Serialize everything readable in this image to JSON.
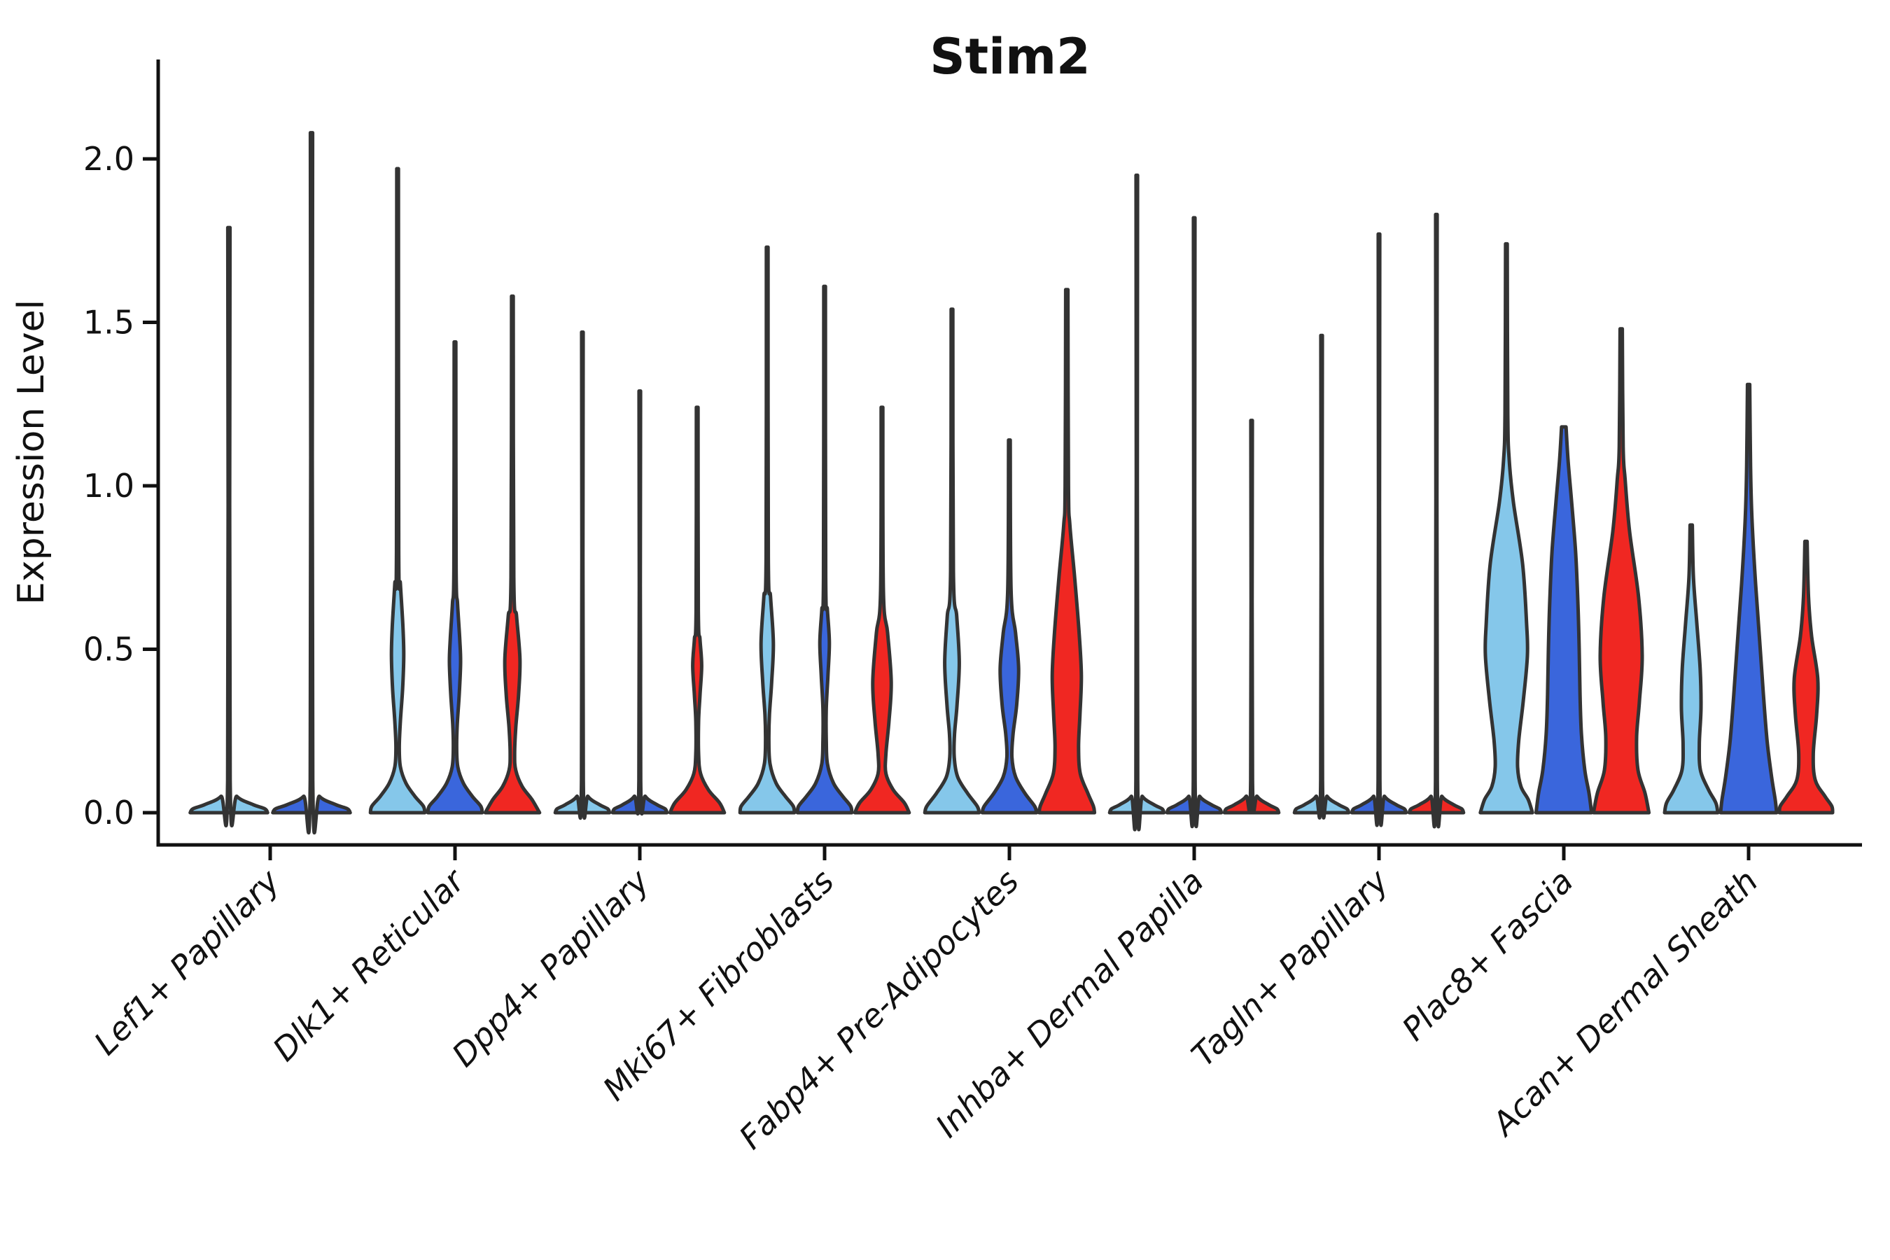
{
  "title": "Stim2",
  "chart_data": {
    "type": "violin",
    "title": "Stim2",
    "xlabel": "",
    "ylabel": "Expression Level",
    "ylim": [
      -0.1,
      2.3
    ],
    "yticks": [
      0.0,
      0.5,
      1.0,
      1.5,
      2.0
    ],
    "ytick_labels": [
      "0.0",
      "0.5",
      "1.0",
      "1.5",
      "2.0"
    ],
    "grid": false,
    "legend": "none",
    "categories": [
      "Lef1+ Papillary",
      "Dlk1+ Reticular",
      "Dpp4+ Papillary",
      "Mki67+ Fibroblasts",
      "Fabp4+ Pre-Adipocytes",
      "Inhba+ Dermal Papilla",
      "Tagln+ Papillary",
      "Plac8+ Fascia",
      "Acan+ Dermal Sheath"
    ],
    "palette": {
      "skyblue": "#85C7EA",
      "blue": "#3A66DC",
      "red": "#F02722",
      "outline": "#333333",
      "axis": "#111111"
    },
    "spike_profile": [
      [
        1,
        0.028
      ],
      [
        0.1,
        0.032
      ],
      [
        0.05,
        0.2
      ],
      [
        0.025,
        0.6
      ],
      [
        0.012,
        0.9
      ],
      [
        0,
        0.97
      ]
    ],
    "violins": [
      {
        "category": 0,
        "color": "skyblue",
        "offset": -59,
        "half_width": 57,
        "max": 1.79,
        "shape": "spike"
      },
      {
        "category": 0,
        "color": "blue",
        "offset": 59,
        "half_width": 57,
        "max": 2.08,
        "shape": "spike"
      },
      {
        "category": 1,
        "color": "skyblue",
        "offset": -82,
        "half_width": 40,
        "max": 1.97,
        "shape": "profile",
        "profile": [
          [
            1.97,
            0.03
          ],
          [
            0.8,
            0.04
          ],
          [
            0.7,
            0.1
          ],
          [
            0.57,
            0.19
          ],
          [
            0.48,
            0.22
          ],
          [
            0.38,
            0.18
          ],
          [
            0.28,
            0.1
          ],
          [
            0.2,
            0.06
          ],
          [
            0.14,
            0.1
          ],
          [
            0.09,
            0.3
          ],
          [
            0.05,
            0.62
          ],
          [
            0.02,
            0.92
          ],
          [
            0,
            0.97
          ]
        ]
      },
      {
        "category": 1,
        "color": "blue",
        "offset": 0,
        "half_width": 40,
        "max": 1.44,
        "shape": "profile",
        "profile": [
          [
            1.44,
            0.03
          ],
          [
            0.75,
            0.04
          ],
          [
            0.64,
            0.09
          ],
          [
            0.53,
            0.17
          ],
          [
            0.46,
            0.2
          ],
          [
            0.36,
            0.15
          ],
          [
            0.27,
            0.08
          ],
          [
            0.2,
            0.06
          ],
          [
            0.14,
            0.1
          ],
          [
            0.09,
            0.3
          ],
          [
            0.05,
            0.62
          ],
          [
            0.02,
            0.92
          ],
          [
            0,
            0.97
          ]
        ]
      },
      {
        "category": 1,
        "color": "red",
        "offset": 82,
        "half_width": 40,
        "max": 1.58,
        "shape": "profile",
        "profile": [
          [
            1.58,
            0.03
          ],
          [
            0.72,
            0.05
          ],
          [
            0.6,
            0.15
          ],
          [
            0.47,
            0.27
          ],
          [
            0.36,
            0.22
          ],
          [
            0.26,
            0.12
          ],
          [
            0.18,
            0.08
          ],
          [
            0.13,
            0.12
          ],
          [
            0.08,
            0.35
          ],
          [
            0.04,
            0.7
          ],
          [
            0,
            0.97
          ]
        ]
      },
      {
        "category": 2,
        "color": "skyblue",
        "offset": -82,
        "half_width": 40,
        "max": 1.47,
        "shape": "spike"
      },
      {
        "category": 2,
        "color": "blue",
        "offset": 0,
        "half_width": 40,
        "max": 1.29,
        "shape": "spike"
      },
      {
        "category": 2,
        "color": "red",
        "offset": 82,
        "half_width": 40,
        "max": 1.24,
        "shape": "profile",
        "profile": [
          [
            1.24,
            0.03
          ],
          [
            0.62,
            0.04
          ],
          [
            0.53,
            0.1
          ],
          [
            0.45,
            0.16
          ],
          [
            0.36,
            0.1
          ],
          [
            0.28,
            0.05
          ],
          [
            0.18,
            0.05
          ],
          [
            0.12,
            0.12
          ],
          [
            0.07,
            0.4
          ],
          [
            0.03,
            0.8
          ],
          [
            0,
            0.97
          ]
        ]
      },
      {
        "category": 3,
        "color": "skyblue",
        "offset": -82,
        "half_width": 40,
        "max": 1.73,
        "shape": "profile",
        "profile": [
          [
            1.73,
            0.03
          ],
          [
            0.78,
            0.04
          ],
          [
            0.66,
            0.12
          ],
          [
            0.52,
            0.22
          ],
          [
            0.4,
            0.16
          ],
          [
            0.3,
            0.08
          ],
          [
            0.22,
            0.06
          ],
          [
            0.15,
            0.1
          ],
          [
            0.09,
            0.32
          ],
          [
            0.05,
            0.65
          ],
          [
            0.02,
            0.93
          ],
          [
            0,
            0.97
          ]
        ]
      },
      {
        "category": 3,
        "color": "blue",
        "offset": 0,
        "half_width": 40,
        "max": 1.61,
        "shape": "profile",
        "profile": [
          [
            1.61,
            0.03
          ],
          [
            0.72,
            0.04
          ],
          [
            0.62,
            0.1
          ],
          [
            0.52,
            0.17
          ],
          [
            0.42,
            0.12
          ],
          [
            0.32,
            0.06
          ],
          [
            0.22,
            0.06
          ],
          [
            0.15,
            0.1
          ],
          [
            0.09,
            0.32
          ],
          [
            0.05,
            0.65
          ],
          [
            0.02,
            0.93
          ],
          [
            0,
            0.97
          ]
        ]
      },
      {
        "category": 3,
        "color": "red",
        "offset": 82,
        "half_width": 40,
        "max": 1.24,
        "shape": "profile",
        "profile": [
          [
            1.24,
            0.03
          ],
          [
            0.68,
            0.05
          ],
          [
            0.55,
            0.2
          ],
          [
            0.4,
            0.33
          ],
          [
            0.28,
            0.25
          ],
          [
            0.18,
            0.14
          ],
          [
            0.12,
            0.14
          ],
          [
            0.07,
            0.4
          ],
          [
            0.03,
            0.8
          ],
          [
            0,
            0.97
          ]
        ]
      },
      {
        "category": 4,
        "color": "skyblue",
        "offset": -82,
        "half_width": 40,
        "max": 1.54,
        "shape": "profile",
        "profile": [
          [
            1.54,
            0.03
          ],
          [
            0.74,
            0.05
          ],
          [
            0.6,
            0.17
          ],
          [
            0.46,
            0.26
          ],
          [
            0.33,
            0.18
          ],
          [
            0.24,
            0.09
          ],
          [
            0.17,
            0.08
          ],
          [
            0.11,
            0.2
          ],
          [
            0.06,
            0.55
          ],
          [
            0.02,
            0.9
          ],
          [
            0,
            0.97
          ]
        ]
      },
      {
        "category": 4,
        "color": "blue",
        "offset": 0,
        "half_width": 40,
        "max": 1.14,
        "shape": "profile",
        "profile": [
          [
            1.14,
            0.03
          ],
          [
            0.68,
            0.06
          ],
          [
            0.55,
            0.22
          ],
          [
            0.44,
            0.33
          ],
          [
            0.33,
            0.26
          ],
          [
            0.24,
            0.13
          ],
          [
            0.17,
            0.09
          ],
          [
            0.11,
            0.22
          ],
          [
            0.06,
            0.55
          ],
          [
            0.02,
            0.9
          ],
          [
            0,
            0.97
          ]
        ]
      },
      {
        "category": 4,
        "color": "red",
        "offset": 82,
        "half_width": 40,
        "max": 1.6,
        "shape": "profile",
        "profile": [
          [
            1.6,
            0.04
          ],
          [
            1.0,
            0.06
          ],
          [
            0.88,
            0.11
          ],
          [
            0.72,
            0.28
          ],
          [
            0.55,
            0.44
          ],
          [
            0.42,
            0.52
          ],
          [
            0.3,
            0.47
          ],
          [
            0.2,
            0.42
          ],
          [
            0.12,
            0.48
          ],
          [
            0.06,
            0.75
          ],
          [
            0.02,
            0.95
          ],
          [
            0,
            0.99
          ]
        ]
      },
      {
        "category": 5,
        "color": "skyblue",
        "offset": -82,
        "half_width": 40,
        "max": 1.95,
        "shape": "spike"
      },
      {
        "category": 5,
        "color": "blue",
        "offset": 0,
        "half_width": 40,
        "max": 1.82,
        "shape": "spike"
      },
      {
        "category": 5,
        "color": "red",
        "offset": 82,
        "half_width": 40,
        "max": 1.2,
        "shape": "spike"
      },
      {
        "category": 6,
        "color": "skyblue",
        "offset": -82,
        "half_width": 40,
        "max": 1.46,
        "shape": "spike"
      },
      {
        "category": 6,
        "color": "blue",
        "offset": 0,
        "half_width": 40,
        "max": 1.77,
        "shape": "spike"
      },
      {
        "category": 6,
        "color": "red",
        "offset": 82,
        "half_width": 40,
        "max": 1.83,
        "shape": "spike"
      },
      {
        "category": 7,
        "color": "skyblue",
        "offset": -82,
        "half_width": 40,
        "max": 1.74,
        "shape": "profile",
        "profile": [
          [
            1.74,
            0.03
          ],
          [
            1.22,
            0.05
          ],
          [
            1.08,
            0.1
          ],
          [
            0.95,
            0.25
          ],
          [
            0.76,
            0.58
          ],
          [
            0.58,
            0.72
          ],
          [
            0.48,
            0.75
          ],
          [
            0.34,
            0.6
          ],
          [
            0.22,
            0.44
          ],
          [
            0.14,
            0.4
          ],
          [
            0.08,
            0.52
          ],
          [
            0.04,
            0.78
          ],
          [
            0,
            0.93
          ]
        ]
      },
      {
        "category": 7,
        "color": "blue",
        "offset": 0,
        "half_width": 40,
        "max": 1.18,
        "shape": "profile",
        "profile": [
          [
            1.18,
            0.08
          ],
          [
            1.08,
            0.15
          ],
          [
            0.95,
            0.28
          ],
          [
            0.8,
            0.42
          ],
          [
            0.65,
            0.5
          ],
          [
            0.5,
            0.55
          ],
          [
            0.36,
            0.58
          ],
          [
            0.24,
            0.63
          ],
          [
            0.13,
            0.75
          ],
          [
            0.06,
            0.9
          ],
          [
            0,
            0.99
          ]
        ]
      },
      {
        "category": 7,
        "color": "red",
        "offset": 82,
        "half_width": 40,
        "max": 1.48,
        "shape": "profile",
        "profile": [
          [
            1.48,
            0.04
          ],
          [
            1.12,
            0.07
          ],
          [
            1.02,
            0.14
          ],
          [
            0.86,
            0.3
          ],
          [
            0.66,
            0.62
          ],
          [
            0.48,
            0.75
          ],
          [
            0.34,
            0.65
          ],
          [
            0.23,
            0.55
          ],
          [
            0.13,
            0.6
          ],
          [
            0.06,
            0.85
          ],
          [
            0,
            0.99
          ]
        ]
      },
      {
        "category": 8,
        "color": "skyblue",
        "offset": -82,
        "half_width": 40,
        "max": 0.88,
        "shape": "profile",
        "profile": [
          [
            0.88,
            0.04
          ],
          [
            0.72,
            0.08
          ],
          [
            0.58,
            0.2
          ],
          [
            0.44,
            0.32
          ],
          [
            0.32,
            0.35
          ],
          [
            0.21,
            0.29
          ],
          [
            0.13,
            0.33
          ],
          [
            0.07,
            0.62
          ],
          [
            0.03,
            0.88
          ],
          [
            0,
            0.95
          ]
        ]
      },
      {
        "category": 8,
        "color": "blue",
        "offset": 0,
        "half_width": 40,
        "max": 1.31,
        "shape": "profile",
        "profile": [
          [
            1.31,
            0.04
          ],
          [
            1.06,
            0.07
          ],
          [
            0.9,
            0.12
          ],
          [
            0.7,
            0.25
          ],
          [
            0.52,
            0.4
          ],
          [
            0.36,
            0.53
          ],
          [
            0.22,
            0.66
          ],
          [
            0.11,
            0.82
          ],
          [
            0.04,
            0.95
          ],
          [
            0,
            1.0
          ]
        ]
      },
      {
        "category": 8,
        "color": "red",
        "offset": 82,
        "half_width": 40,
        "max": 0.83,
        "shape": "profile",
        "profile": [
          [
            0.83,
            0.04
          ],
          [
            0.66,
            0.09
          ],
          [
            0.54,
            0.2
          ],
          [
            0.41,
            0.42
          ],
          [
            0.3,
            0.38
          ],
          [
            0.18,
            0.26
          ],
          [
            0.1,
            0.33
          ],
          [
            0.05,
            0.68
          ],
          [
            0.02,
            0.92
          ],
          [
            0,
            0.95
          ]
        ]
      }
    ]
  }
}
